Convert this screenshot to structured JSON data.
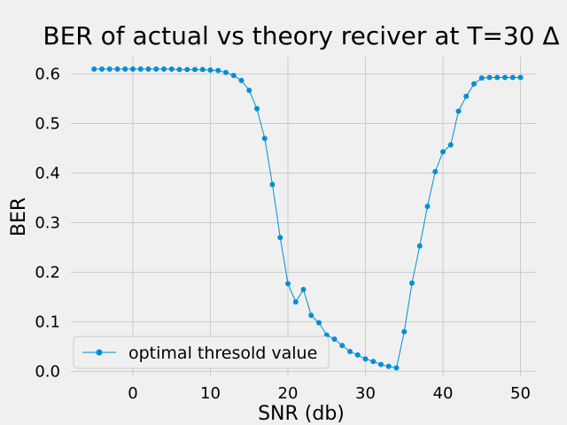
{
  "chart_data": {
    "type": "line",
    "title": "BER of actual vs theory reciver at T=30 Δ",
    "xlabel": "SNR (db)",
    "ylabel": "BER",
    "xlim": [
      -8,
      52
    ],
    "ylim": [
      -0.01,
      0.635
    ],
    "xticks": [
      0,
      10,
      20,
      30,
      40,
      50
    ],
    "yticks": [
      0.0,
      0.1,
      0.2,
      0.3,
      0.4,
      0.5,
      0.6
    ],
    "xtick_labels": [
      "0",
      "10",
      "20",
      "30",
      "40",
      "50"
    ],
    "ytick_labels": [
      "0.0",
      "0.1",
      "0.2",
      "0.3",
      "0.4",
      "0.5",
      "0.6"
    ],
    "grid": true,
    "legend_position": "lower-left",
    "series": [
      {
        "name": "optimal thresold value",
        "color": "#008fd5",
        "marker": "circle",
        "x": [
          -5,
          -4,
          -3,
          -2,
          -1,
          0,
          1,
          2,
          3,
          4,
          5,
          6,
          7,
          8,
          9,
          10,
          11,
          12,
          13,
          14,
          15,
          16,
          17,
          18,
          19,
          20,
          21,
          22,
          23,
          24,
          25,
          26,
          27,
          28,
          29,
          30,
          31,
          32,
          33,
          34,
          35,
          36,
          37,
          38,
          39,
          40,
          41,
          42,
          43,
          44,
          45,
          46,
          47,
          48,
          49,
          50
        ],
        "y": [
          0.61,
          0.61,
          0.61,
          0.61,
          0.61,
          0.61,
          0.61,
          0.61,
          0.61,
          0.61,
          0.61,
          0.609,
          0.609,
          0.609,
          0.609,
          0.608,
          0.607,
          0.603,
          0.597,
          0.587,
          0.567,
          0.53,
          0.47,
          0.377,
          0.27,
          0.177,
          0.14,
          0.165,
          0.113,
          0.098,
          0.073,
          0.065,
          0.052,
          0.04,
          0.033,
          0.025,
          0.02,
          0.014,
          0.01,
          0.007,
          0.08,
          0.178,
          0.253,
          0.333,
          0.403,
          0.443,
          0.457,
          0.525,
          0.555,
          0.58,
          0.592,
          0.593,
          0.593,
          0.593,
          0.593,
          0.593
        ]
      }
    ]
  }
}
